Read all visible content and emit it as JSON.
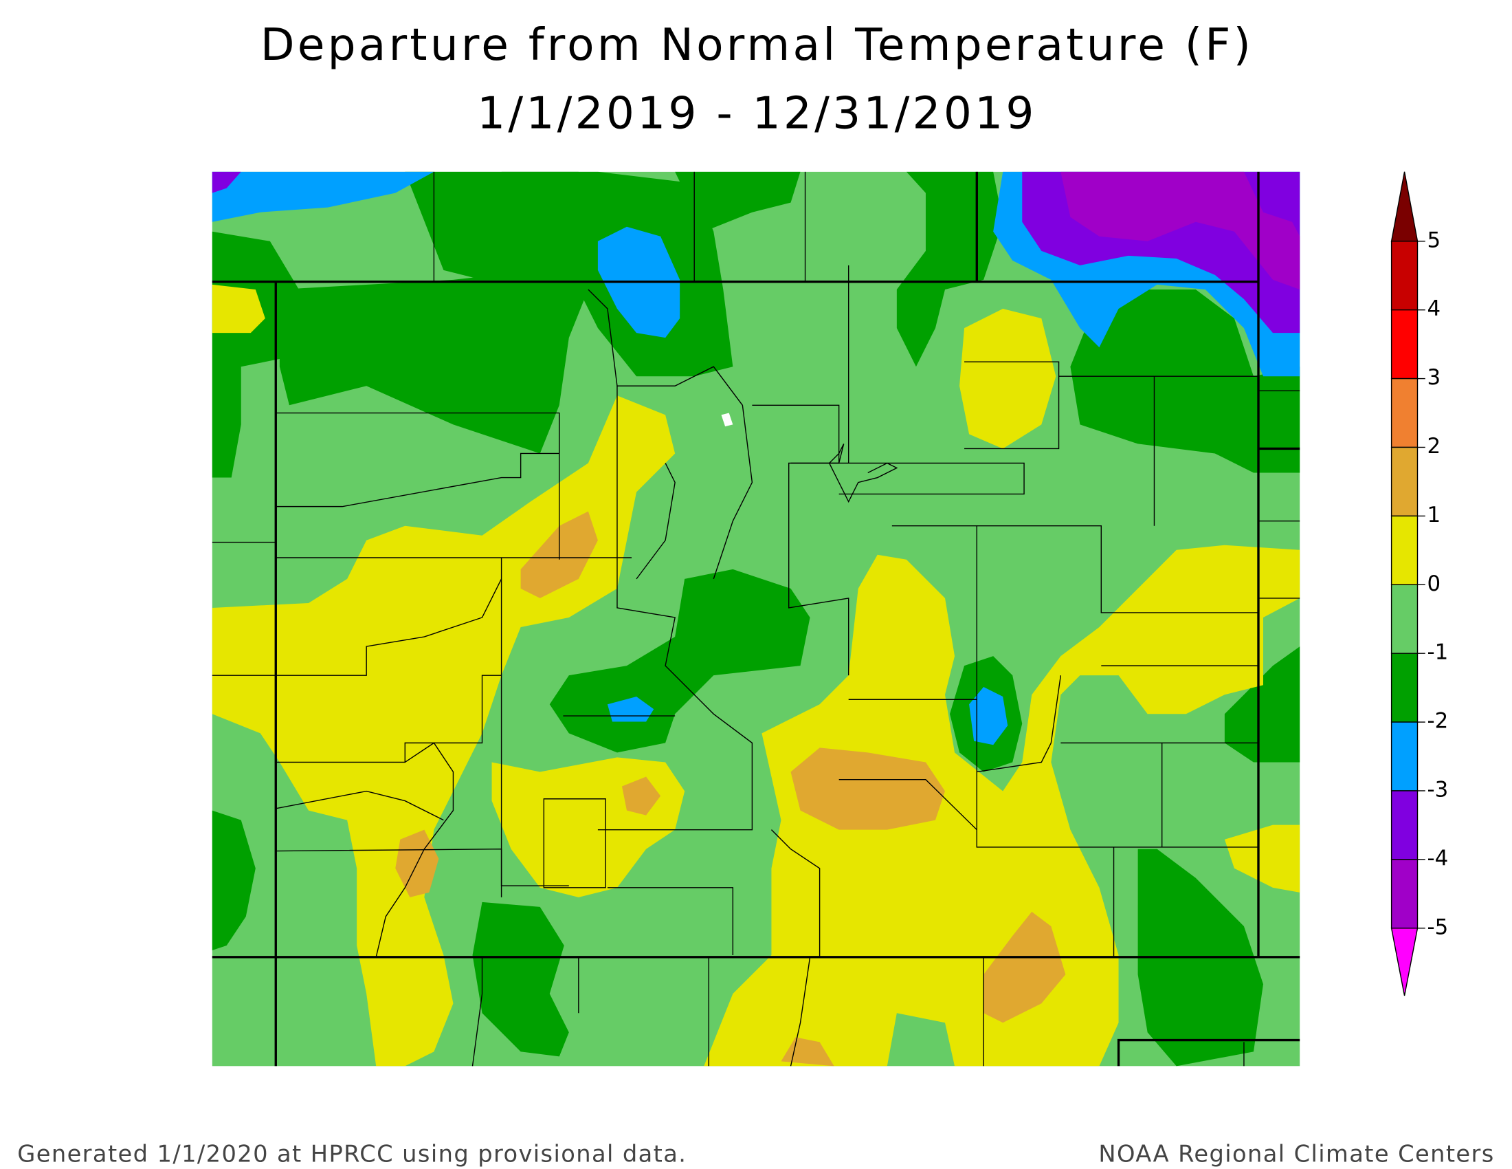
{
  "title": [
    "Departure from Normal Temperature (F)",
    "1/1/2019 - 12/31/2019"
  ],
  "legend": {
    "ticks": [
      5,
      4,
      3,
      2,
      1,
      0,
      -1,
      -2,
      -3,
      -4,
      -5
    ],
    "colors": [
      "#7a0000",
      "#c80000",
      "#ff0000",
      "#f08030",
      "#e0a830",
      "#e6e600",
      "#66cc66",
      "#00a000",
      "#00a0ff",
      "#8000e0",
      "#a000c8",
      "#ff00ff"
    ]
  },
  "footer": {
    "left": "Generated 1/1/2020 at HPRCC using provisional data.",
    "right": "NOAA Regional Climate Centers"
  }
}
